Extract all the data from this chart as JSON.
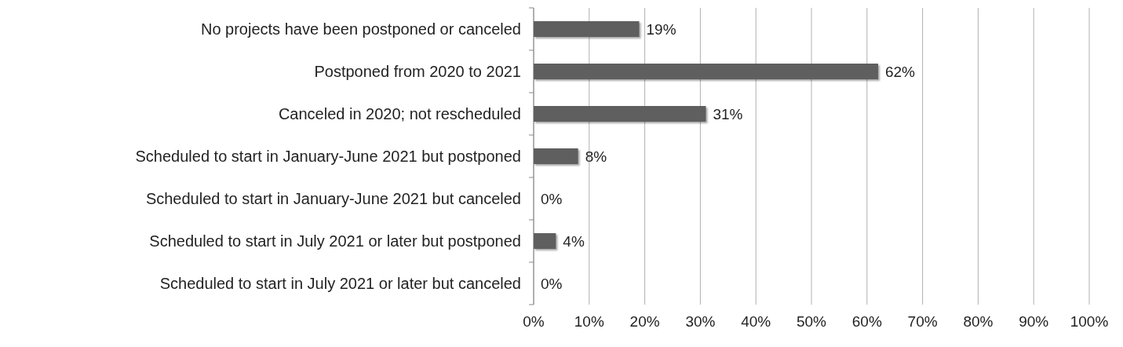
{
  "chart_data": {
    "type": "bar",
    "orientation": "horizontal",
    "categories": [
      "No projects have been postponed or canceled",
      "Postponed from 2020 to 2021",
      "Canceled in 2020; not rescheduled",
      "Scheduled to start in January-June 2021 but postponed",
      "Scheduled to start in January-June 2021 but canceled",
      "Scheduled to start in July 2021 or later but postponed",
      "Scheduled to start in July 2021 or later but canceled"
    ],
    "values": [
      19,
      62,
      31,
      8,
      0,
      4,
      0
    ],
    "value_labels": [
      "19%",
      "62%",
      "31%",
      "8%",
      "0%",
      "4%",
      "0%"
    ],
    "color": "#5f5f5f",
    "xlim": [
      0,
      100
    ],
    "xticks": [
      {
        "value": 0,
        "label": "0%"
      },
      {
        "value": 10,
        "label": "10%"
      },
      {
        "value": 20,
        "label": "20%"
      },
      {
        "value": 30,
        "label": "30%"
      },
      {
        "value": 40,
        "label": "40%"
      },
      {
        "value": 50,
        "label": "50%"
      },
      {
        "value": 60,
        "label": "60%"
      },
      {
        "value": 70,
        "label": "70%"
      },
      {
        "value": 80,
        "label": "80%"
      },
      {
        "value": 90,
        "label": "90%"
      },
      {
        "value": 100,
        "label": "100%"
      }
    ],
    "grid": "x"
  }
}
